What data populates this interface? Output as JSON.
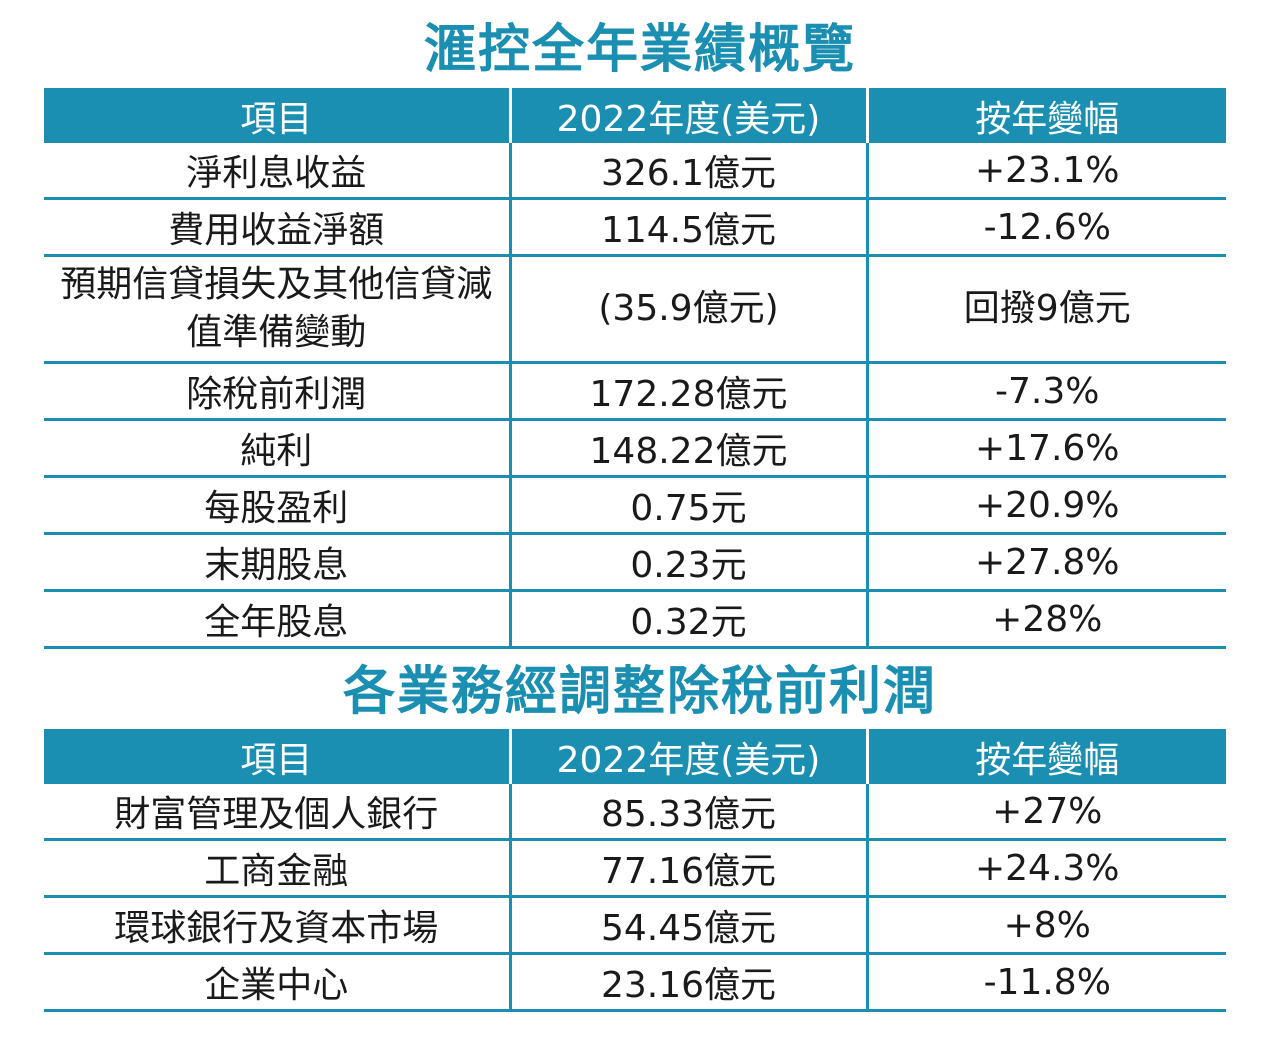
{
  "overview": {
    "title": "滙控全年業績概覽",
    "headers": [
      "項目",
      "2022年度(美元)",
      "按年變幅"
    ],
    "rows": [
      {
        "item": "淨利息收益",
        "value": "326.1億元",
        "change": "+23.1%"
      },
      {
        "item": "費用收益淨額",
        "value": "114.5億元",
        "change": "-12.6%"
      },
      {
        "item": "預期信貸損失及其他信貸減值準備變動",
        "value": "(35.9億元)",
        "change": "回撥9億元"
      },
      {
        "item": "除稅前利潤",
        "value": "172.28億元",
        "change": "-7.3%"
      },
      {
        "item": "純利",
        "value": "148.22億元",
        "change": "+17.6%"
      },
      {
        "item": "每股盈利",
        "value": "0.75元",
        "change": "+20.9%"
      },
      {
        "item": "末期股息",
        "value": "0.23元",
        "change": "+27.8%"
      },
      {
        "item": "全年股息",
        "value": "0.32元",
        "change": "+28%"
      }
    ]
  },
  "segments": {
    "title": "各業務經調整除稅前利潤",
    "headers": [
      "項目",
      "2022年度(美元)",
      "按年變幅"
    ],
    "rows": [
      {
        "item": "財富管理及個人銀行",
        "value": "85.33億元",
        "change": "+27%"
      },
      {
        "item": "工商金融",
        "value": "77.16億元",
        "change": "+24.3%"
      },
      {
        "item": "環球銀行及資本市場",
        "value": "54.45億元",
        "change": "+8%"
      },
      {
        "item": "企業中心",
        "value": "23.16億元",
        "change": "-11.8%"
      }
    ]
  },
  "colors": {
    "accent": "#1a8fb2",
    "text": "#1a1a1a",
    "header_text": "#ffffff"
  },
  "chart_data": [
    {
      "type": "table",
      "title": "滙控全年業績概覽",
      "columns": [
        "項目",
        "2022年度(美元)",
        "按年變幅"
      ],
      "rows": [
        [
          "淨利息收益",
          "326.1億元",
          "+23.1%"
        ],
        [
          "費用收益淨額",
          "114.5億元",
          "-12.6%"
        ],
        [
          "預期信貸損失及其他信貸減值準備變動",
          "(35.9億元)",
          "回撥9億元"
        ],
        [
          "除稅前利潤",
          "172.28億元",
          "-7.3%"
        ],
        [
          "純利",
          "148.22億元",
          "+17.6%"
        ],
        [
          "每股盈利",
          "0.75元",
          "+20.9%"
        ],
        [
          "末期股息",
          "0.23元",
          "+27.8%"
        ],
        [
          "全年股息",
          "0.32元",
          "+28%"
        ]
      ]
    },
    {
      "type": "table",
      "title": "各業務經調整除稅前利潤",
      "columns": [
        "項目",
        "2022年度(美元)",
        "按年變幅"
      ],
      "rows": [
        [
          "財富管理及個人銀行",
          "85.33億元",
          "+27%"
        ],
        [
          "工商金融",
          "77.16億元",
          "+24.3%"
        ],
        [
          "環球銀行及資本市場",
          "54.45億元",
          "+8%"
        ],
        [
          "企業中心",
          "23.16億元",
          "-11.8%"
        ]
      ]
    }
  ]
}
